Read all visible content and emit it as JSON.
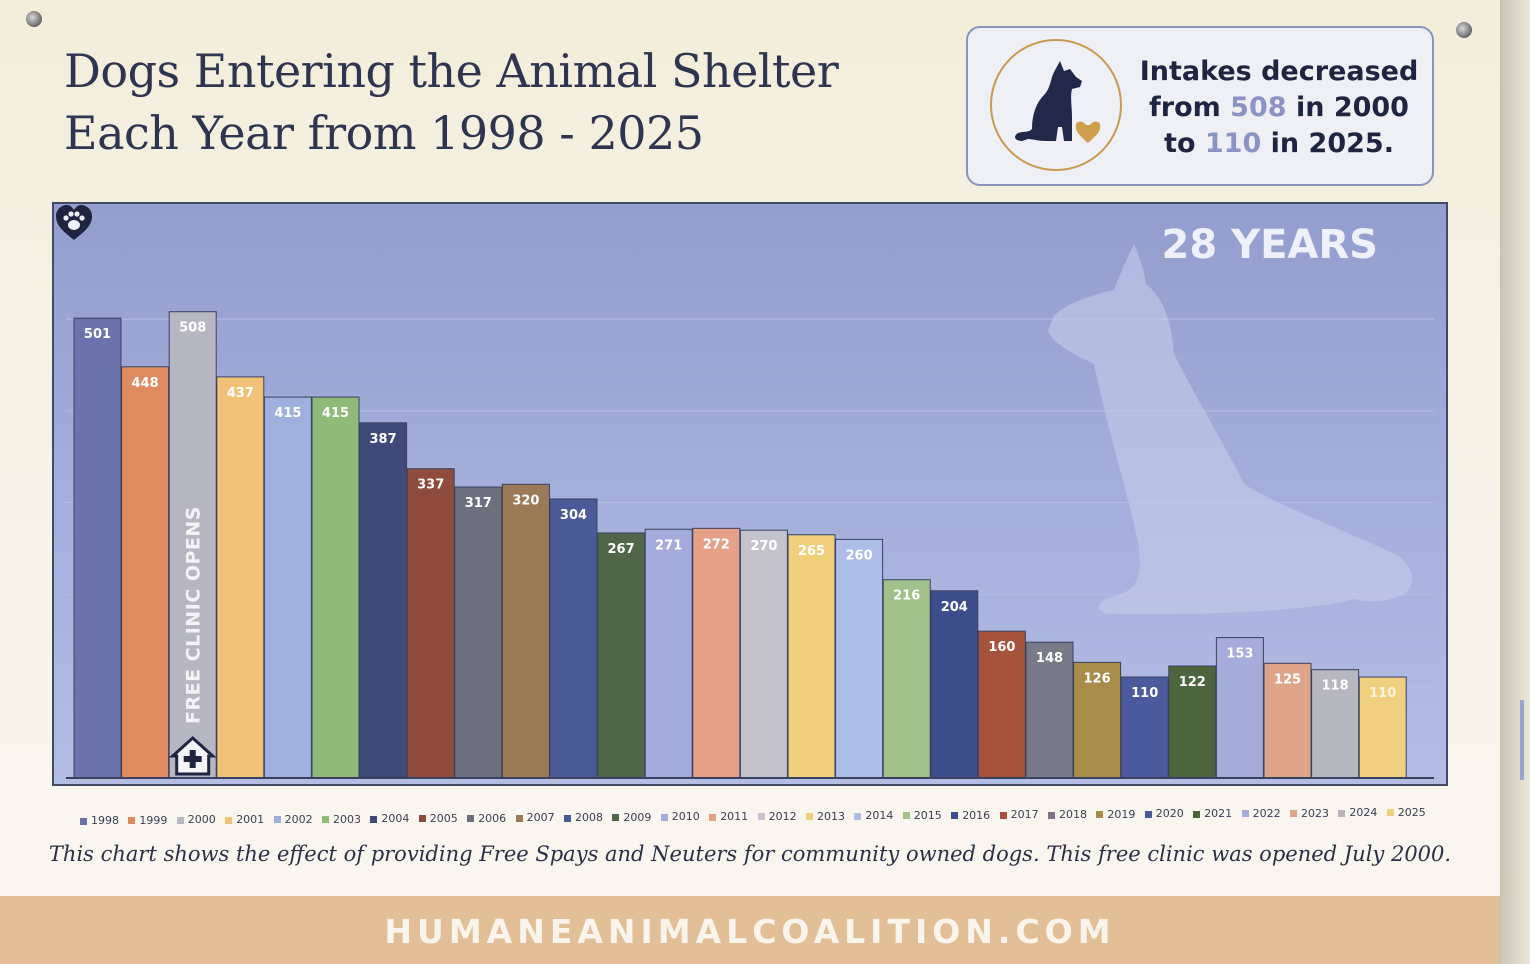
{
  "title": {
    "line1": "Dogs Entering the Animal Shelter",
    "line2": "Each Year from 1998 - 2025"
  },
  "callout": {
    "icon": "dog-with-heart-icon",
    "line1": "Intakes decreased",
    "line2_pre": "from ",
    "line2_value": "508",
    "line2_post": " in 2000",
    "line3_pre": "to ",
    "line3_value": "110",
    "line3_post": " in 2025."
  },
  "badge": {
    "text": "28 YEARS",
    "icon": "paw-heart-icon"
  },
  "chart_data": {
    "type": "bar",
    "categories": [
      "1998",
      "1999",
      "2000",
      "2001",
      "2002",
      "2003",
      "2004",
      "2005",
      "2006",
      "2007",
      "2008",
      "2009",
      "2010",
      "2011",
      "2012",
      "2013",
      "2014",
      "2015",
      "2016",
      "2017",
      "2018",
      "2019",
      "2020",
      "2021",
      "2022",
      "2023",
      "2024",
      "2025"
    ],
    "values": [
      501,
      448,
      508,
      437,
      415,
      415,
      387,
      337,
      317,
      320,
      304,
      267,
      271,
      272,
      270,
      265,
      260,
      216,
      204,
      160,
      148,
      126,
      110,
      122,
      153,
      125,
      118,
      110
    ],
    "colors": [
      "#6b72ac",
      "#e08a62",
      "#b7b7c4",
      "#efc275",
      "#9fb0de",
      "#8fba7a",
      "#3f4a7a",
      "#8f4b3c",
      "#6d6f7d",
      "#9c7a58",
      "#4b5a99",
      "#4f6648",
      "#a4aadb",
      "#e5a088",
      "#c4c3cc",
      "#f0cf7c",
      "#aebde8",
      "#a1c08a",
      "#3d4c8a",
      "#a6533c",
      "#787a88",
      "#a98b4a",
      "#4a5a9c",
      "#4c653d",
      "#a5acd9",
      "#dea48a",
      "#b7b7bf",
      "#f0d080"
    ],
    "annotation": "FREE CLINIC OPENS",
    "annotation_icon": "clinic-house-icon",
    "legend_position": "bottom",
    "grid": true
  },
  "footnote": "This chart shows the effect of providing Free Spays and Neuters for community owned dogs.  This free clinic was opened July 2000.",
  "footer_url": "HUMANEANIMALCOALITION.COM"
}
